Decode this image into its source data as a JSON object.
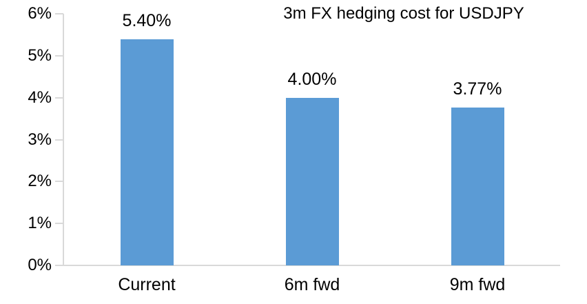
{
  "chart_data": {
    "type": "bar",
    "title": "3m FX hedging cost for USDJPY",
    "categories": [
      "Current",
      "6m fwd",
      "9m fwd"
    ],
    "values": [
      5.4,
      4.0,
      3.77
    ],
    "data_labels": [
      "5.40%",
      "4.00%",
      "3.77%"
    ],
    "xlabel": "",
    "ylabel": "",
    "ylim": [
      0,
      6
    ],
    "ytick_step": 1,
    "ytick_labels": [
      "0%",
      "1%",
      "2%",
      "3%",
      "4%",
      "5%",
      "6%"
    ],
    "grid": false,
    "legend": "none",
    "bar_color": "#5B9BD5",
    "axis_color": "#D9D9D9",
    "text_color": "#000000",
    "background": "#FFFFFF"
  }
}
